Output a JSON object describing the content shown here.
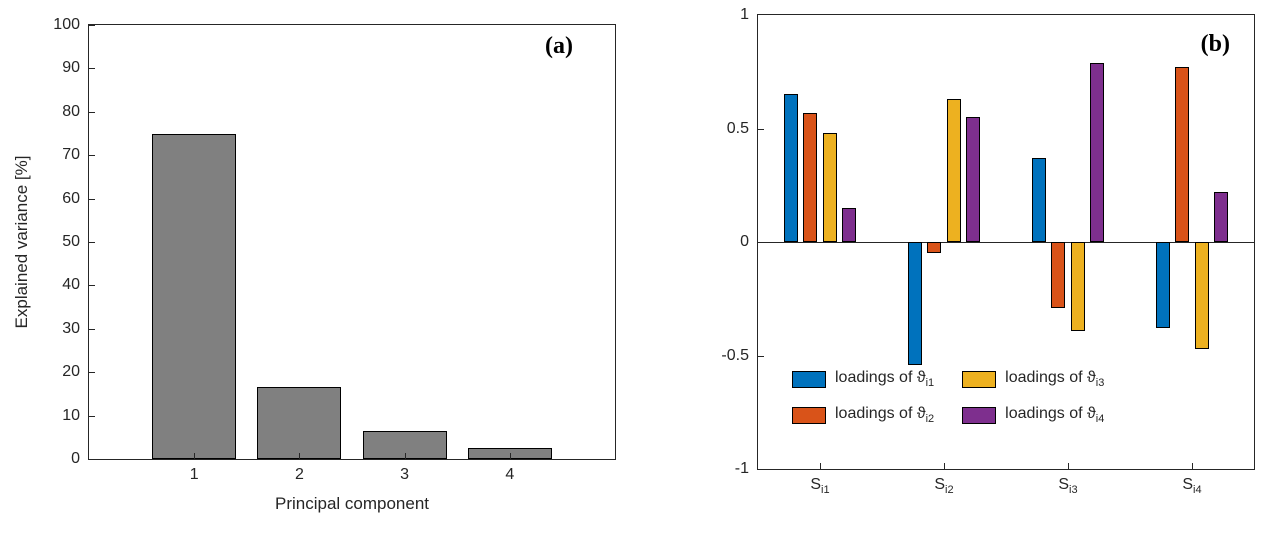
{
  "figure": {
    "background": "#ffffff",
    "axis_color": "#262626",
    "text_color": "#262626"
  },
  "panels": [
    {
      "label": "(a)"
    },
    {
      "label": "(b)"
    }
  ],
  "chart_data": [
    {
      "type": "bar",
      "panel": "(a)",
      "title": "",
      "xlabel": "Principal component",
      "ylabel": "Explained variance [%]",
      "categories": [
        "1",
        "2",
        "3",
        "4"
      ],
      "values": [
        75,
        16.5,
        6.5,
        2.5
      ],
      "ylim": [
        0,
        100
      ],
      "yticks": [
        0,
        10,
        20,
        30,
        40,
        50,
        60,
        70,
        80,
        90,
        100
      ],
      "xlim": [
        0,
        5
      ],
      "bar_width_fraction": 0.4,
      "bar_color": "#808080",
      "bar_edge_color": "#000000",
      "grid": false,
      "legend": null
    },
    {
      "type": "bar",
      "panel": "(b)",
      "title": "",
      "xlabel": "",
      "ylabel": "",
      "categories": [
        {
          "base": "S",
          "sub": "i1"
        },
        {
          "base": "S",
          "sub": "i2"
        },
        {
          "base": "S",
          "sub": "i3"
        },
        {
          "base": "S",
          "sub": "i4"
        }
      ],
      "series": [
        {
          "label": "loadings of ϑi1",
          "label_prefix": "loadings of ",
          "symbol": "ϑ",
          "sub": "i1",
          "color": "#0072BD",
          "values": [
            0.65,
            -0.54,
            0.37,
            -0.38
          ]
        },
        {
          "label": "loadings of ϑi2",
          "label_prefix": "loadings of ",
          "symbol": "ϑ",
          "sub": "i2",
          "color": "#D95319",
          "values": [
            0.57,
            -0.05,
            -0.29,
            0.77
          ]
        },
        {
          "label": "loadings of ϑi3",
          "label_prefix": "loadings of ",
          "symbol": "ϑ",
          "sub": "i3",
          "color": "#EDB120",
          "values": [
            0.48,
            0.63,
            -0.39,
            -0.47
          ]
        },
        {
          "label": "loadings of ϑi4",
          "label_prefix": "loadings of ",
          "symbol": "ϑ",
          "sub": "i4",
          "color": "#7E2F8E",
          "values": [
            0.15,
            0.55,
            0.79,
            0.22
          ]
        }
      ],
      "ylim": [
        -1,
        1
      ],
      "yticks": [
        -1,
        -0.5,
        0,
        0.5,
        1
      ],
      "bar_edge_color": "#000000",
      "grid": false,
      "legend_position": "inside-bottom-left",
      "legend_columns": 2
    }
  ]
}
